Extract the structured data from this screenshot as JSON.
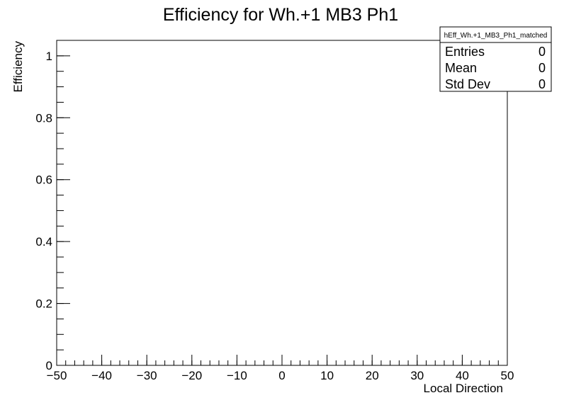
{
  "chart_data": {
    "type": "line",
    "title": "Efficiency for Wh.+1 MB3 Ph1",
    "xlabel": "Local Direction",
    "ylabel": "Efficiency",
    "xlim": [
      -50,
      50
    ],
    "ylim": [
      0,
      1.05
    ],
    "x_major_ticks": [
      -50,
      -40,
      -30,
      -20,
      -10,
      0,
      10,
      20,
      30,
      40,
      50
    ],
    "x_tick_labels": [
      "−50",
      "−40",
      "−30",
      "−20",
      "−10",
      "0",
      "10",
      "20",
      "30",
      "40",
      "50"
    ],
    "x_minor_step": 2,
    "y_major_ticks": [
      0,
      0.2,
      0.4,
      0.6,
      0.8,
      1
    ],
    "y_tick_labels": [
      "0",
      "0.2",
      "0.4",
      "0.6",
      "0.8",
      "1"
    ],
    "y_minor_step": 0.05,
    "grid": false,
    "series": [],
    "stats_box": {
      "name": "hEff_Wh.+1_MB3_Ph1_matched",
      "rows": [
        {
          "label": "Entries",
          "value": "0"
        },
        {
          "label": "Mean",
          "value": "0"
        },
        {
          "label": "Std Dev",
          "value": "0"
        }
      ],
      "placement": "top-right"
    }
  }
}
